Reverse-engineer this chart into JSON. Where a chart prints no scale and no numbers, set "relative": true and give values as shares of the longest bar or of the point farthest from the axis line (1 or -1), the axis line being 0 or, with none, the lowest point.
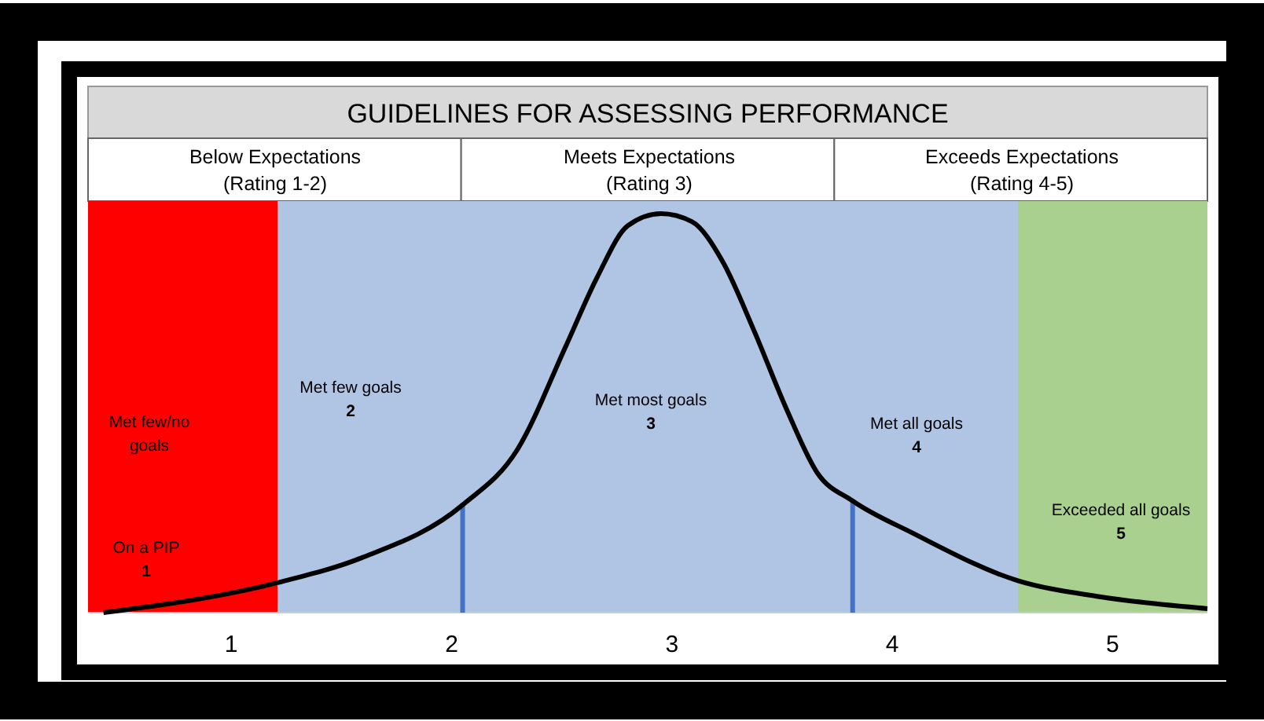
{
  "chart_data": {
    "type": "line",
    "title": "GUIDELINES FOR ASSESSING PERFORMANCE",
    "relative": true,
    "marker": "none",
    "line_style": "solid",
    "xlim": [
      0.35,
      5.43
    ],
    "xticks": [
      1,
      2,
      3,
      4,
      5
    ],
    "series": [
      {
        "color": "#000000",
        "x": [
          0.42,
          1.21,
          1.59,
          2.05,
          2.3,
          2.52,
          2.66,
          2.8,
          2.95,
          3.09,
          3.23,
          3.37,
          3.52,
          3.66,
          3.82,
          4.09,
          4.57,
          4.94,
          5.43
        ],
        "values": [
          0,
          0.075,
          0.137,
          0.27,
          0.41,
          0.67,
          0.84,
          0.97,
          1,
          0.98,
          0.88,
          0.71,
          0.51,
          0.35,
          0.28,
          0.2,
          0.08,
          0.04,
          0.01
        ]
      }
    ],
    "bands": [
      {
        "axis": "x",
        "from": 0.35,
        "to": 1.21,
        "color": "#ff0000"
      },
      {
        "axis": "x",
        "from": 1.21,
        "to": 4.57,
        "color": "#b0c4e4"
      },
      {
        "axis": "x",
        "from": 4.57,
        "to": 5.43,
        "color": "#a9d08e"
      }
    ],
    "ref_lines": [
      {
        "axis": "x",
        "value": 2.05,
        "color": "#4472c4"
      },
      {
        "axis": "x",
        "value": 3.82,
        "color": "#4472c4"
      }
    ],
    "annotations": [
      "Below Expectations\n(Rating 1-2)",
      "Meets Expectations\n(Rating 3)",
      "Exceeds Expectations\n(Rating 4-5)",
      "Met few/no\ngoals",
      "On a PIP\n1",
      "Met few goals\n2",
      "Met most goals\n3",
      "Met all goals\n4",
      "Exceeded  all goals\n5"
    ]
  }
}
